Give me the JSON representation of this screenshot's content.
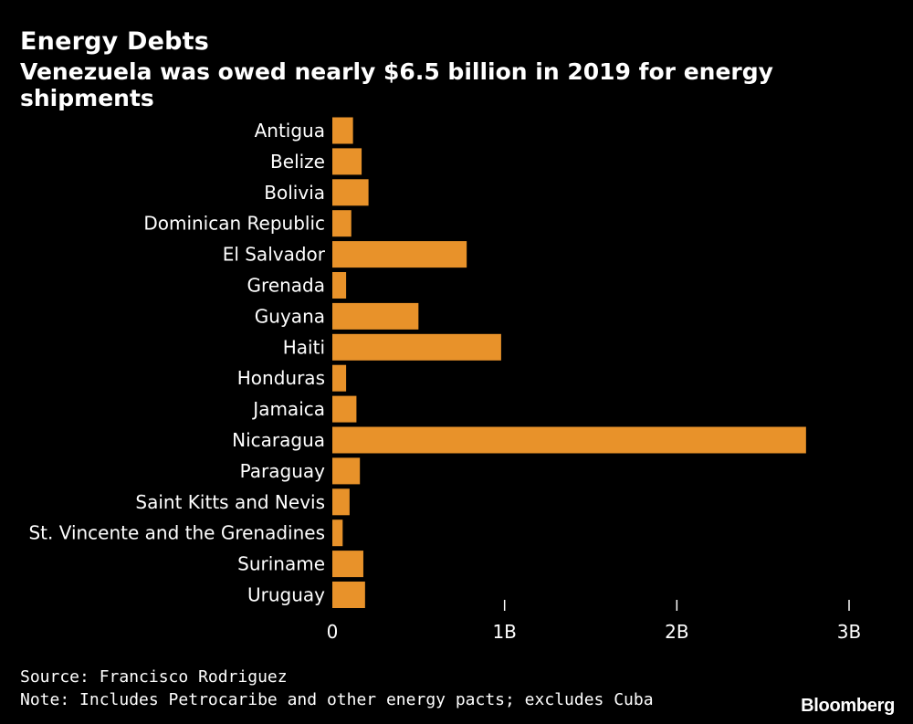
{
  "chart_data": {
    "type": "bar",
    "orientation": "horizontal",
    "title": "Energy Debts",
    "subtitle": "Venezuela was owed nearly $6.5 billion in 2019 for energy shipments",
    "categories": [
      "Antigua",
      "Belize",
      "Bolivia",
      "Dominican Republic",
      "El Salvador",
      "Grenada",
      "Guyana",
      "Haiti",
      "Honduras",
      "Jamaica",
      "Nicaragua",
      "Paraguay",
      "Saint Kitts and Nevis",
      "St. Vincente and the Grenadines",
      "Suriname",
      "Uruguay"
    ],
    "values": [
      0.12,
      0.17,
      0.21,
      0.11,
      0.78,
      0.08,
      0.5,
      0.98,
      0.08,
      0.14,
      2.75,
      0.16,
      0.1,
      0.06,
      0.18,
      0.19
    ],
    "value_units": "billions USD",
    "xlim": [
      0,
      3
    ],
    "xticks": [
      {
        "value": 0,
        "label": "0"
      },
      {
        "value": 1,
        "label": "1B"
      },
      {
        "value": 2,
        "label": "2B"
      },
      {
        "value": 3,
        "label": "3B"
      }
    ],
    "bar_color": "#e8922a",
    "background_color": "#000000",
    "grid": false
  },
  "footer": {
    "source": "Source: Francisco Rodriguez",
    "note": "Note: Includes Petrocaribe and other energy pacts; excludes Cuba",
    "brand": "Bloomberg"
  }
}
